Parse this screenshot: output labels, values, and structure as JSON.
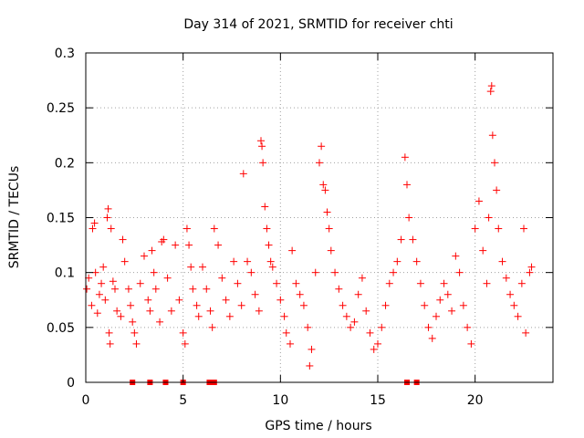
{
  "chart_data": {
    "type": "scatter",
    "title": "Day 314 of 2021, SRMTID for receiver chti",
    "xlabel": "GPS time / hours",
    "ylabel": "SRMTID / TECUs",
    "xlim": [
      0,
      24
    ],
    "ylim": [
      0,
      0.3
    ],
    "x_ticks": [
      0,
      5,
      10,
      15,
      20
    ],
    "x_tick_labels": [
      "0",
      "5",
      "10",
      "15",
      "20"
    ],
    "y_ticks": [
      0,
      0.05,
      0.1,
      0.15,
      0.2,
      0.25,
      0.3
    ],
    "y_tick_labels": [
      "0",
      "0.05",
      "0.1",
      "0.15",
      "0.2",
      "0.25",
      "0.3"
    ],
    "grid": true,
    "marker": "+",
    "color": "#ff0000",
    "series": [
      {
        "name": "SRMTID",
        "points": [
          [
            0.05,
            0.085
          ],
          [
            0.15,
            0.095
          ],
          [
            0.3,
            0.07
          ],
          [
            0.35,
            0.14
          ],
          [
            0.45,
            0.145
          ],
          [
            0.5,
            0.1
          ],
          [
            0.6,
            0.063
          ],
          [
            0.7,
            0.08
          ],
          [
            0.8,
            0.09
          ],
          [
            0.9,
            0.105
          ],
          [
            1.0,
            0.075
          ],
          [
            1.1,
            0.15
          ],
          [
            1.15,
            0.158
          ],
          [
            1.2,
            0.045
          ],
          [
            1.25,
            0.035
          ],
          [
            1.3,
            0.14
          ],
          [
            1.4,
            0.092
          ],
          [
            1.5,
            0.085
          ],
          [
            1.6,
            0.065
          ],
          [
            1.8,
            0.06
          ],
          [
            1.9,
            0.13
          ],
          [
            2.0,
            0.11
          ],
          [
            2.2,
            0.085
          ],
          [
            2.3,
            0.07
          ],
          [
            2.4,
            0.055
          ],
          [
            2.5,
            0.045
          ],
          [
            2.6,
            0.035
          ],
          [
            2.8,
            0.09
          ],
          [
            3.0,
            0.115
          ],
          [
            3.2,
            0.075
          ],
          [
            3.3,
            0.065
          ],
          [
            3.4,
            0.12
          ],
          [
            3.5,
            0.1
          ],
          [
            3.6,
            0.085
          ],
          [
            3.8,
            0.055
          ],
          [
            3.9,
            0.128
          ],
          [
            4.0,
            0.13
          ],
          [
            4.2,
            0.095
          ],
          [
            4.4,
            0.065
          ],
          [
            4.6,
            0.125
          ],
          [
            4.8,
            0.075
          ],
          [
            5.0,
            0.045
          ],
          [
            5.1,
            0.035
          ],
          [
            5.2,
            0.14
          ],
          [
            5.3,
            0.125
          ],
          [
            5.4,
            0.105
          ],
          [
            5.5,
            0.085
          ],
          [
            5.7,
            0.07
          ],
          [
            5.8,
            0.06
          ],
          [
            6.0,
            0.105
          ],
          [
            6.2,
            0.085
          ],
          [
            6.4,
            0.065
          ],
          [
            6.5,
            0.05
          ],
          [
            6.6,
            0.14
          ],
          [
            6.8,
            0.125
          ],
          [
            7.0,
            0.095
          ],
          [
            7.2,
            0.075
          ],
          [
            7.4,
            0.06
          ],
          [
            7.6,
            0.11
          ],
          [
            7.8,
            0.09
          ],
          [
            8.0,
            0.07
          ],
          [
            8.1,
            0.19
          ],
          [
            8.3,
            0.11
          ],
          [
            8.5,
            0.1
          ],
          [
            8.7,
            0.08
          ],
          [
            8.9,
            0.065
          ],
          [
            9.0,
            0.22
          ],
          [
            9.05,
            0.215
          ],
          [
            9.1,
            0.2
          ],
          [
            9.2,
            0.16
          ],
          [
            9.3,
            0.14
          ],
          [
            9.4,
            0.125
          ],
          [
            9.5,
            0.11
          ],
          [
            9.6,
            0.105
          ],
          [
            9.8,
            0.09
          ],
          [
            10.0,
            0.075
          ],
          [
            10.2,
            0.06
          ],
          [
            10.3,
            0.045
          ],
          [
            10.5,
            0.035
          ],
          [
            10.6,
            0.12
          ],
          [
            10.8,
            0.09
          ],
          [
            11.0,
            0.08
          ],
          [
            11.2,
            0.07
          ],
          [
            11.4,
            0.05
          ],
          [
            11.5,
            0.015
          ],
          [
            11.6,
            0.03
          ],
          [
            11.8,
            0.1
          ],
          [
            12.0,
            0.2
          ],
          [
            12.1,
            0.215
          ],
          [
            12.2,
            0.18
          ],
          [
            12.3,
            0.175
          ],
          [
            12.4,
            0.155
          ],
          [
            12.5,
            0.14
          ],
          [
            12.6,
            0.12
          ],
          [
            12.8,
            0.1
          ],
          [
            13.0,
            0.085
          ],
          [
            13.2,
            0.07
          ],
          [
            13.4,
            0.06
          ],
          [
            13.6,
            0.05
          ],
          [
            13.8,
            0.055
          ],
          [
            14.0,
            0.08
          ],
          [
            14.2,
            0.095
          ],
          [
            14.4,
            0.065
          ],
          [
            14.6,
            0.045
          ],
          [
            14.8,
            0.03
          ],
          [
            15.0,
            0.035
          ],
          [
            15.2,
            0.05
          ],
          [
            15.4,
            0.07
          ],
          [
            15.6,
            0.09
          ],
          [
            15.8,
            0.1
          ],
          [
            16.0,
            0.11
          ],
          [
            16.2,
            0.13
          ],
          [
            16.4,
            0.205
          ],
          [
            16.5,
            0.18
          ],
          [
            16.6,
            0.15
          ],
          [
            16.8,
            0.13
          ],
          [
            17.0,
            0.11
          ],
          [
            17.2,
            0.09
          ],
          [
            17.4,
            0.07
          ],
          [
            17.6,
            0.05
          ],
          [
            17.8,
            0.04
          ],
          [
            18.0,
            0.06
          ],
          [
            18.2,
            0.075
          ],
          [
            18.4,
            0.09
          ],
          [
            18.6,
            0.08
          ],
          [
            18.8,
            0.065
          ],
          [
            19.0,
            0.115
          ],
          [
            19.2,
            0.1
          ],
          [
            19.4,
            0.07
          ],
          [
            19.6,
            0.05
          ],
          [
            19.8,
            0.035
          ],
          [
            20.0,
            0.14
          ],
          [
            20.2,
            0.165
          ],
          [
            20.4,
            0.12
          ],
          [
            20.6,
            0.09
          ],
          [
            20.7,
            0.15
          ],
          [
            20.8,
            0.265
          ],
          [
            20.85,
            0.27
          ],
          [
            20.9,
            0.225
          ],
          [
            21.0,
            0.2
          ],
          [
            21.1,
            0.175
          ],
          [
            21.2,
            0.14
          ],
          [
            21.4,
            0.11
          ],
          [
            21.6,
            0.095
          ],
          [
            21.8,
            0.08
          ],
          [
            22.0,
            0.07
          ],
          [
            22.2,
            0.06
          ],
          [
            22.4,
            0.09
          ],
          [
            22.5,
            0.14
          ],
          [
            22.6,
            0.045
          ],
          [
            22.8,
            0.1
          ],
          [
            22.9,
            0.105
          ]
        ]
      }
    ],
    "data_gaps": [
      {
        "label": "gap",
        "x": 2.4,
        "y": 0
      },
      {
        "label": "gap",
        "x": 3.3,
        "y": 0
      },
      {
        "label": "gap",
        "x": 4.1,
        "y": 0
      },
      {
        "label": "gap",
        "x": 5.0,
        "y": 0
      },
      {
        "label": "gap",
        "x": 6.35,
        "y": 0
      },
      {
        "label": "gap",
        "x": 6.6,
        "y": 0
      },
      {
        "label": "gap",
        "x": 16.5,
        "y": 0
      },
      {
        "label": "gap",
        "x": 17.0,
        "y": 0
      }
    ]
  }
}
